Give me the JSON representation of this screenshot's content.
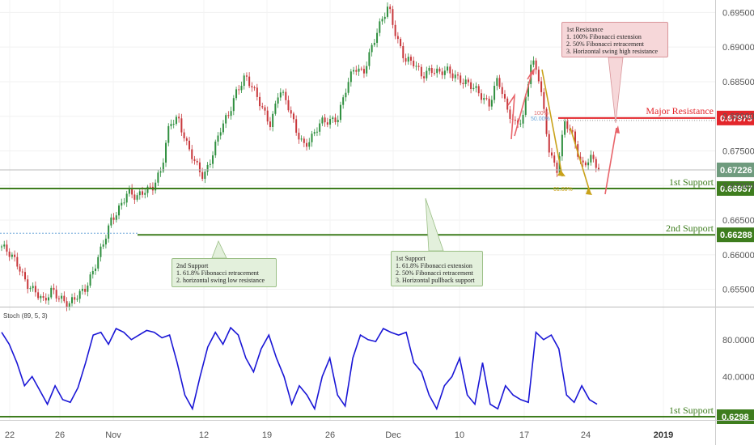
{
  "chart_data": [
    {
      "type": "candlestick",
      "title": "",
      "ylim": [
        0.6525,
        0.6968
      ],
      "y_ticks": [
        "0.69500",
        "0.69000",
        "0.68500",
        "0.68000",
        "0.67500",
        "0.67000",
        "0.66500",
        "0.66000",
        "0.65500"
      ],
      "x_ticks": [
        "22",
        "26",
        "Nov",
        "12",
        "19",
        "26",
        "Dec",
        "10",
        "17",
        "24",
        "2019"
      ],
      "current_price": "0.67226",
      "levels": [
        {
          "name": "Major Resistance",
          "value": 0.67975,
          "label": "0.67975",
          "color": "#e3262b"
        },
        {
          "name": "1st Support",
          "value": 0.66957,
          "label": "0.66957",
          "color": "#3e7d1e"
        },
        {
          "name": "2nd Support",
          "value": 0.66288,
          "label": "0.66288",
          "color": "#3e7d1e"
        }
      ],
      "fib_labels": [
        "100%",
        "50.00%",
        "61.80%"
      ],
      "price_path": [
        0.6612,
        0.6598,
        0.6585,
        0.656,
        0.6545,
        0.653,
        0.6552,
        0.6538,
        0.6525,
        0.654,
        0.6555,
        0.658,
        0.661,
        0.665,
        0.667,
        0.669,
        0.668,
        0.6695,
        0.67,
        0.672,
        0.679,
        0.68,
        0.676,
        0.673,
        0.6712,
        0.6745,
        0.678,
        0.68,
        0.684,
        0.686,
        0.6835,
        0.681,
        0.679,
        0.684,
        0.6815,
        0.678,
        0.676,
        0.677,
        0.679,
        0.6795,
        0.68,
        0.684,
        0.687,
        0.6865,
        0.69,
        0.693,
        0.696,
        0.6915,
        0.688,
        0.6875,
        0.686,
        0.687,
        0.686,
        0.6865,
        0.686,
        0.685,
        0.684,
        0.683,
        0.682,
        0.6855,
        0.681,
        0.679,
        0.68,
        0.688,
        0.685,
        0.676,
        0.672,
        0.679,
        0.677,
        0.673,
        0.674,
        0.6722
      ]
    },
    {
      "type": "line",
      "title": "Stoch (89, 5, 3)",
      "ylim": [
        0,
        100
      ],
      "y_ticks": [
        "80.0000",
        "40.0000"
      ],
      "current_value": "0.6298",
      "series": [
        {
          "name": "Stoch",
          "values": [
            88,
            75,
            55,
            30,
            40,
            25,
            10,
            30,
            15,
            12,
            28,
            55,
            85,
            88,
            75,
            92,
            88,
            80,
            85,
            90,
            88,
            82,
            85,
            55,
            20,
            5,
            40,
            72,
            88,
            75,
            93,
            85,
            60,
            45,
            70,
            85,
            60,
            40,
            10,
            30,
            20,
            5,
            40,
            60,
            20,
            8,
            60,
            85,
            80,
            78,
            92,
            88,
            85,
            88,
            55,
            45,
            20,
            5,
            30,
            40,
            60,
            20,
            10,
            55,
            10,
            5,
            30,
            20,
            15,
            12,
            88,
            80,
            85,
            70,
            20,
            12,
            30,
            15,
            10
          ]
        }
      ],
      "levels": [
        {
          "name": "1st Support",
          "value": 0.6298
        }
      ]
    }
  ],
  "labels": {
    "major_resistance": "Major Resistance",
    "support1": "1st Support",
    "support2": "2nd Support",
    "stoch_support": "1st Support",
    "stoch_title": "Stoch (89, 5, 3)"
  },
  "notes": {
    "resistance": [
      "1st Resistance",
      "1. 100% Fibonacci extension",
      "2. 50% Fibonacci retracement",
      "3. Horizontal swing high resistance"
    ],
    "support2": [
      "2nd Support",
      "1. 61.8% Fibonacci retracement",
      "2. horizontal swing low resistance"
    ],
    "support1": [
      "1st Support",
      "1. 61.8% Fibonacci extension",
      "2. 50% Fibonacci retracement",
      "3. Horizontal pullback support"
    ]
  },
  "colors": {
    "resistance": "#e3262b",
    "support": "#3e7d1e",
    "candle_up": "#2f8f3f",
    "candle_down": "#c8373b",
    "stoch_line": "#1a16d6",
    "arrow_red": "#e8646a",
    "arrow_gold": "#c9a21a",
    "current_price_badge": "#6f9b7e"
  }
}
